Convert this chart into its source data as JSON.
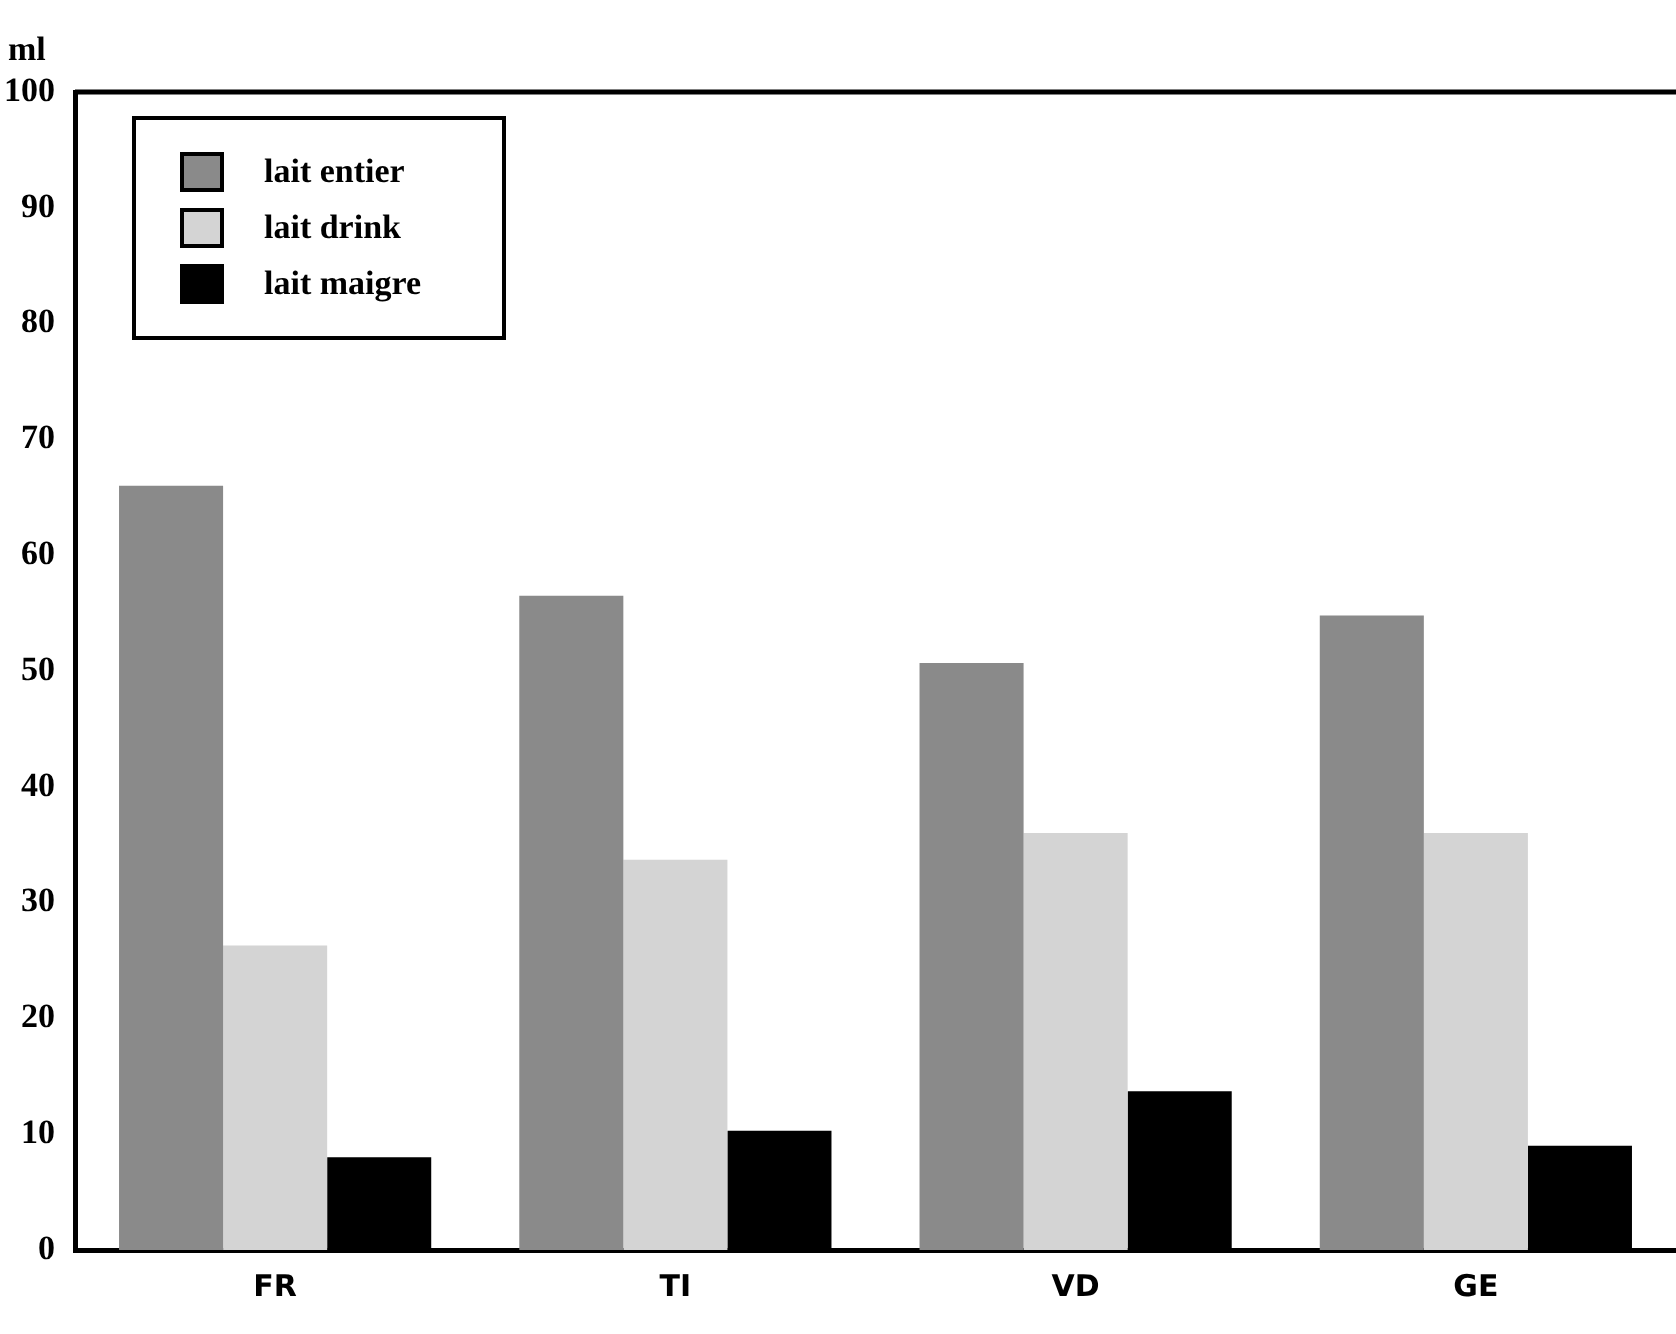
{
  "chart_data": {
    "type": "bar",
    "ylabel": "ml",
    "categories": [
      "FR",
      "TI",
      "VD",
      "GE"
    ],
    "series": [
      {
        "name": "lait entier",
        "color": "#8a8a8a",
        "values": [
          66,
          56.5,
          50.7,
          54.8
        ]
      },
      {
        "name": "lait drink",
        "color": "#d4d4d4",
        "values": [
          26.3,
          33.7,
          36,
          36
        ]
      },
      {
        "name": "lait maigre",
        "color": "#000000",
        "values": [
          8,
          10.3,
          13.7,
          9
        ]
      }
    ],
    "ylim": [
      0,
      100
    ],
    "yticks": [
      0,
      10,
      20,
      30,
      40,
      50,
      60,
      70,
      80,
      90,
      100
    ],
    "grid": false,
    "legend": "top left"
  }
}
